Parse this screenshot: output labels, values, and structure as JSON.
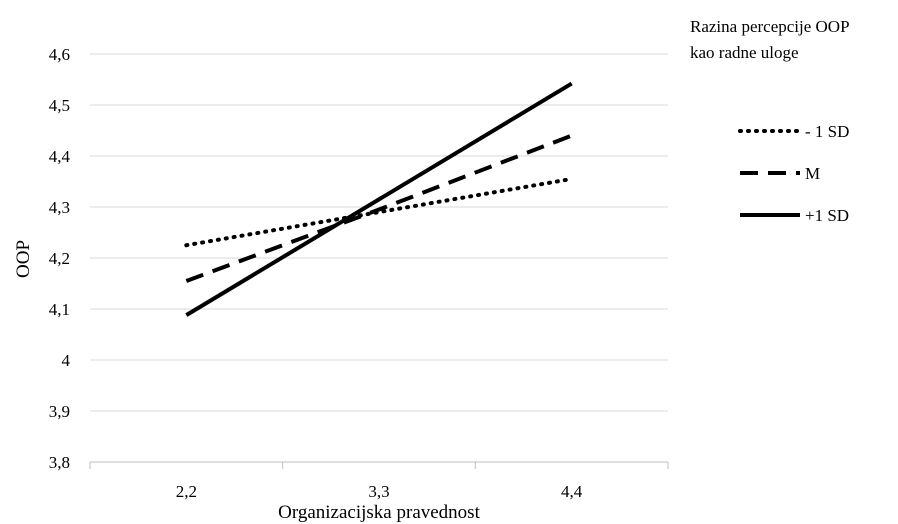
{
  "chart_data": {
    "type": "line",
    "title": "",
    "xlabel": "Organizacijska pravednost",
    "ylabel": "OOP",
    "categories": [
      "2,2",
      "3,3",
      "4,4"
    ],
    "ylim": [
      3.8,
      4.6
    ],
    "yticks": [
      3.8,
      3.9,
      4.0,
      4.1,
      4.2,
      4.3,
      4.4,
      4.5,
      4.6
    ],
    "ytick_labels": [
      "3,8",
      "3,9",
      "4",
      "4,1",
      "4,2",
      "4,3",
      "4,4",
      "4,5",
      "4,6"
    ],
    "grid": "horizontal",
    "legend_title": [
      "Razina percepcije OOP",
      "kao radne uloge"
    ],
    "legend_position": "right",
    "series": [
      {
        "name": "- 1 SD",
        "values": [
          4.225,
          4.29,
          4.355
        ],
        "style": "dotted"
      },
      {
        "name": "M",
        "values": [
          4.155,
          4.295,
          4.44
        ],
        "style": "dashed"
      },
      {
        "name": "+1 SD",
        "values": [
          4.088,
          4.315,
          4.542
        ],
        "style": "solid"
      }
    ]
  }
}
